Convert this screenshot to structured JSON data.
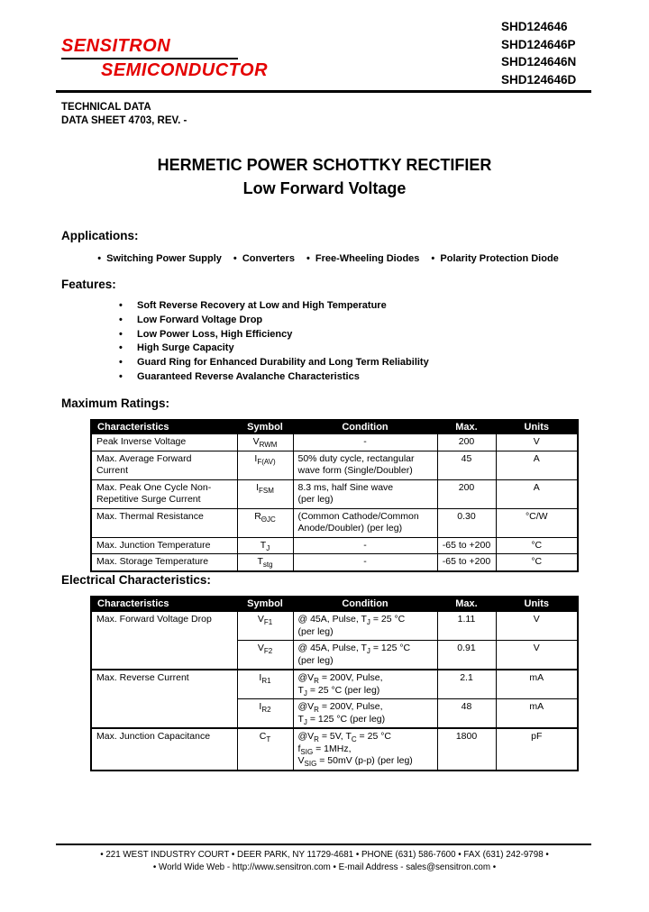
{
  "page": {
    "logo": {
      "line1": "SENSITRON",
      "line2": "SEMICONDUCTOR",
      "color": "#e40000"
    },
    "part_numbers": [
      "SHD124646",
      "SHD124646P",
      "SHD124646N",
      "SHD124646D"
    ],
    "doc_info": {
      "line1": "TECHNICAL DATA",
      "line2": "DATA SHEET 4703, REV. -"
    },
    "title": {
      "line1": "HERMETIC POWER SCHOTTKY RECTIFIER",
      "line2": "Low Forward Voltage"
    }
  },
  "applications": {
    "heading": "Applications:",
    "items": [
      "Switching Power Supply",
      "Converters",
      "Free-Wheeling Diodes",
      "Polarity Protection Diode"
    ]
  },
  "features": {
    "heading": "Features:",
    "items": [
      "Soft Reverse Recovery at Low and High Temperature",
      "Low Forward Voltage Drop",
      "Low Power Loss, High Efficiency",
      "High Surge Capacity",
      "Guard Ring for Enhanced Durability and Long Term Reliability",
      "Guaranteed Reverse Avalanche Characteristics"
    ]
  },
  "maximum_ratings": {
    "heading": "Maximum Ratings:",
    "columns": [
      "Characteristics",
      "Symbol",
      "Condition",
      "Max.",
      "Units"
    ],
    "rows": [
      {
        "char": "Peak Inverse Voltage",
        "span": 1,
        "symbol": "V~RWM~",
        "condition": "-",
        "max": "200",
        "units": "V"
      },
      {
        "char": "Max. Average Forward\nCurrent",
        "span": 1,
        "symbol": "I~F(AV)~",
        "condition": "50% duty cycle, rectangular\nwave form (Single/Doubler)",
        "max": "45",
        "units": "A"
      },
      {
        "char": "Max. Peak One Cycle Non-\nRepetitive Surge Current",
        "span": 1,
        "symbol": "I~FSM~",
        "condition": "8.3 ms, half Sine wave\n(per leg)",
        "max": "200",
        "units": "A"
      },
      {
        "char": "Max. Thermal Resistance",
        "span": 1,
        "symbol": "R~ΘJC~",
        "condition": "(Common Cathode/Common\nAnode/Doubler) (per leg)",
        "max": "0.30",
        "units": "°C/W"
      },
      {
        "char": "Max. Junction Temperature",
        "span": 1,
        "symbol": "T~J~",
        "condition": "-",
        "max": "-65 to +200",
        "units": "°C"
      },
      {
        "char": "Max. Storage Temperature",
        "span": 1,
        "symbol": "T~stg~",
        "condition": "-",
        "max": "-65 to +200",
        "units": "°C"
      }
    ]
  },
  "electrical_characteristics": {
    "heading": "Electrical Characteristics:",
    "columns": [
      "Characteristics",
      "Symbol",
      "Condition",
      "Max.",
      "Units"
    ],
    "rows": [
      {
        "char": "Max. Forward Voltage Drop",
        "span": 2,
        "group": true,
        "symbol": "V~F1~",
        "condition": "@ 45A, Pulse, T~J~ = 25 °C\n(per leg)",
        "max": "1.11",
        "units": "V"
      },
      {
        "symbol": "V~F2~",
        "condition": "@ 45A, Pulse, T~J~ = 125 °C\n(per leg)",
        "max": "0.91",
        "units": "V"
      },
      {
        "char": "Max. Reverse Current",
        "span": 2,
        "group": true,
        "symbol": "I~R1~",
        "condition": "@V~R~ = 200V, Pulse,\nT~J~ = 25 °C (per leg)",
        "max": "2.1",
        "units": "mA"
      },
      {
        "symbol": "I~R2~",
        "condition": "@V~R~ = 200V, Pulse,\nT~J~ = 125 °C (per leg)",
        "max": "48",
        "units": "mA"
      },
      {
        "char": "Max. Junction Capacitance",
        "span": 1,
        "group": true,
        "symbol": "C~T~",
        "condition": "@V~R~ = 5V, T~C~ = 25 °C\nf~SIG~ = 1MHz,\nV~SIG~ = 50mV (p-p) (per leg)",
        "max": "1800",
        "units": "pF"
      }
    ]
  },
  "footer": {
    "line1": "• 221 WEST INDUSTRY COURT • DEER PARK, NY 11729-4681 • PHONE (631) 586-7600 • FAX (631) 242-9798 •",
    "line2": "• World Wide Web - http://www.sensitron.com • E-mail Address - sales@sensitron.com •"
  }
}
